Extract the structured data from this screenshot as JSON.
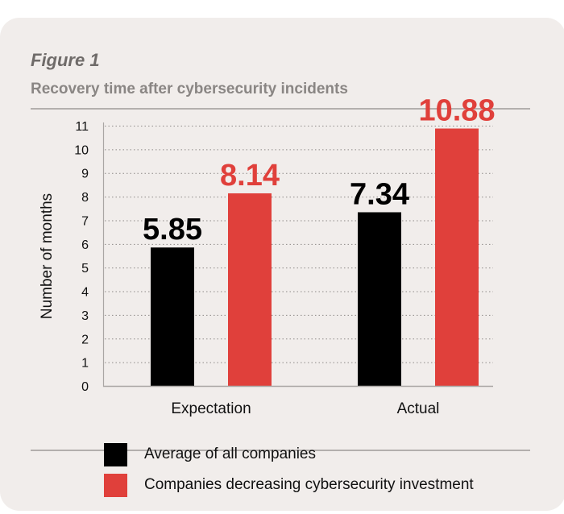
{
  "figure": {
    "label": "Figure 1",
    "title": "Recovery time after cybersecurity incidents"
  },
  "colors": {
    "black": "#000000",
    "red": "#e0403b",
    "background": "#f1edeb"
  },
  "chart_data": {
    "type": "bar",
    "title": "Recovery time after cybersecurity incidents",
    "xlabel": "",
    "ylabel": "Number of months",
    "ylim": [
      0,
      11
    ],
    "yticks": [
      "0",
      "1",
      "2",
      "3",
      "4",
      "5",
      "6",
      "7",
      "8",
      "9",
      "10",
      "11"
    ],
    "grid": true,
    "categories": [
      "Expectation",
      "Actual"
    ],
    "series": [
      {
        "name": "Average of all companies",
        "color": "#000000",
        "values": [
          5.85,
          7.34
        ],
        "labels": [
          "5.85",
          "7.34"
        ]
      },
      {
        "name": "Companies decreasing cybersecurity investment",
        "color": "#e0403b",
        "values": [
          8.14,
          10.88
        ],
        "labels": [
          "8.14",
          "10.88"
        ]
      }
    ],
    "legend_position": "bottom"
  }
}
